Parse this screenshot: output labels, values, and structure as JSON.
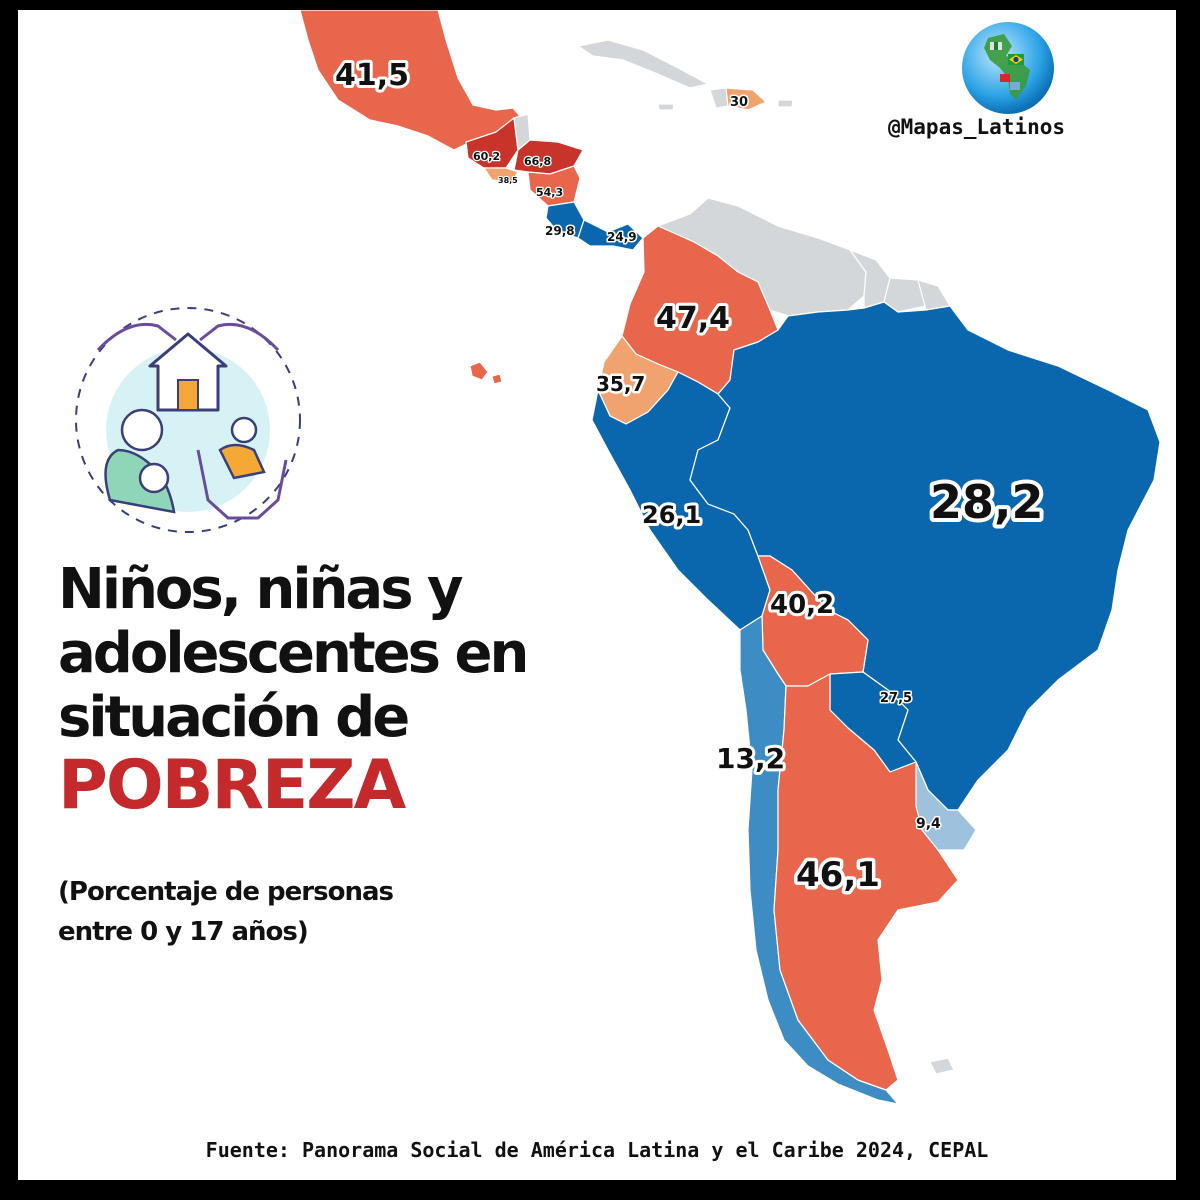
{
  "title": {
    "line1": "Niños, niñas y",
    "line2": "adolescentes en",
    "line3": "situación de",
    "highlight": "POBREZA"
  },
  "subtitle": {
    "line1": "(Porcentaje de personas",
    "line2": "entre 0 y 17 años)"
  },
  "brand": "@Mapas_Latinos",
  "source": "Fuente: Panorama Social de América Latina y el Caribe 2024, CEPAL",
  "colors": {
    "high": "#e8664c",
    "very_high": "#c8342a",
    "medium_high": "#f0a36e",
    "low": "#0b67ad",
    "very_low": "#3d8cc4",
    "lowest": "#9ec2dd",
    "no_data": "#d3d7da",
    "accent": "#c4292b"
  },
  "icons": [
    "globe-icon",
    "child-protection-icon"
  ],
  "values": {
    "mexico": "41,5",
    "dominican_republic": "30",
    "guatemala": "60,2",
    "honduras": "66,8",
    "el_salvador": "38,5",
    "nicaragua": "54,3",
    "costa_rica": "29,8",
    "panama": "24,9",
    "colombia": "47,4",
    "ecuador": "35,7",
    "peru": "26,1",
    "brazil": "28,2",
    "bolivia": "40,2",
    "paraguay": "27,5",
    "chile": "13,2",
    "uruguay": "9,4",
    "argentina": "46,1"
  }
}
